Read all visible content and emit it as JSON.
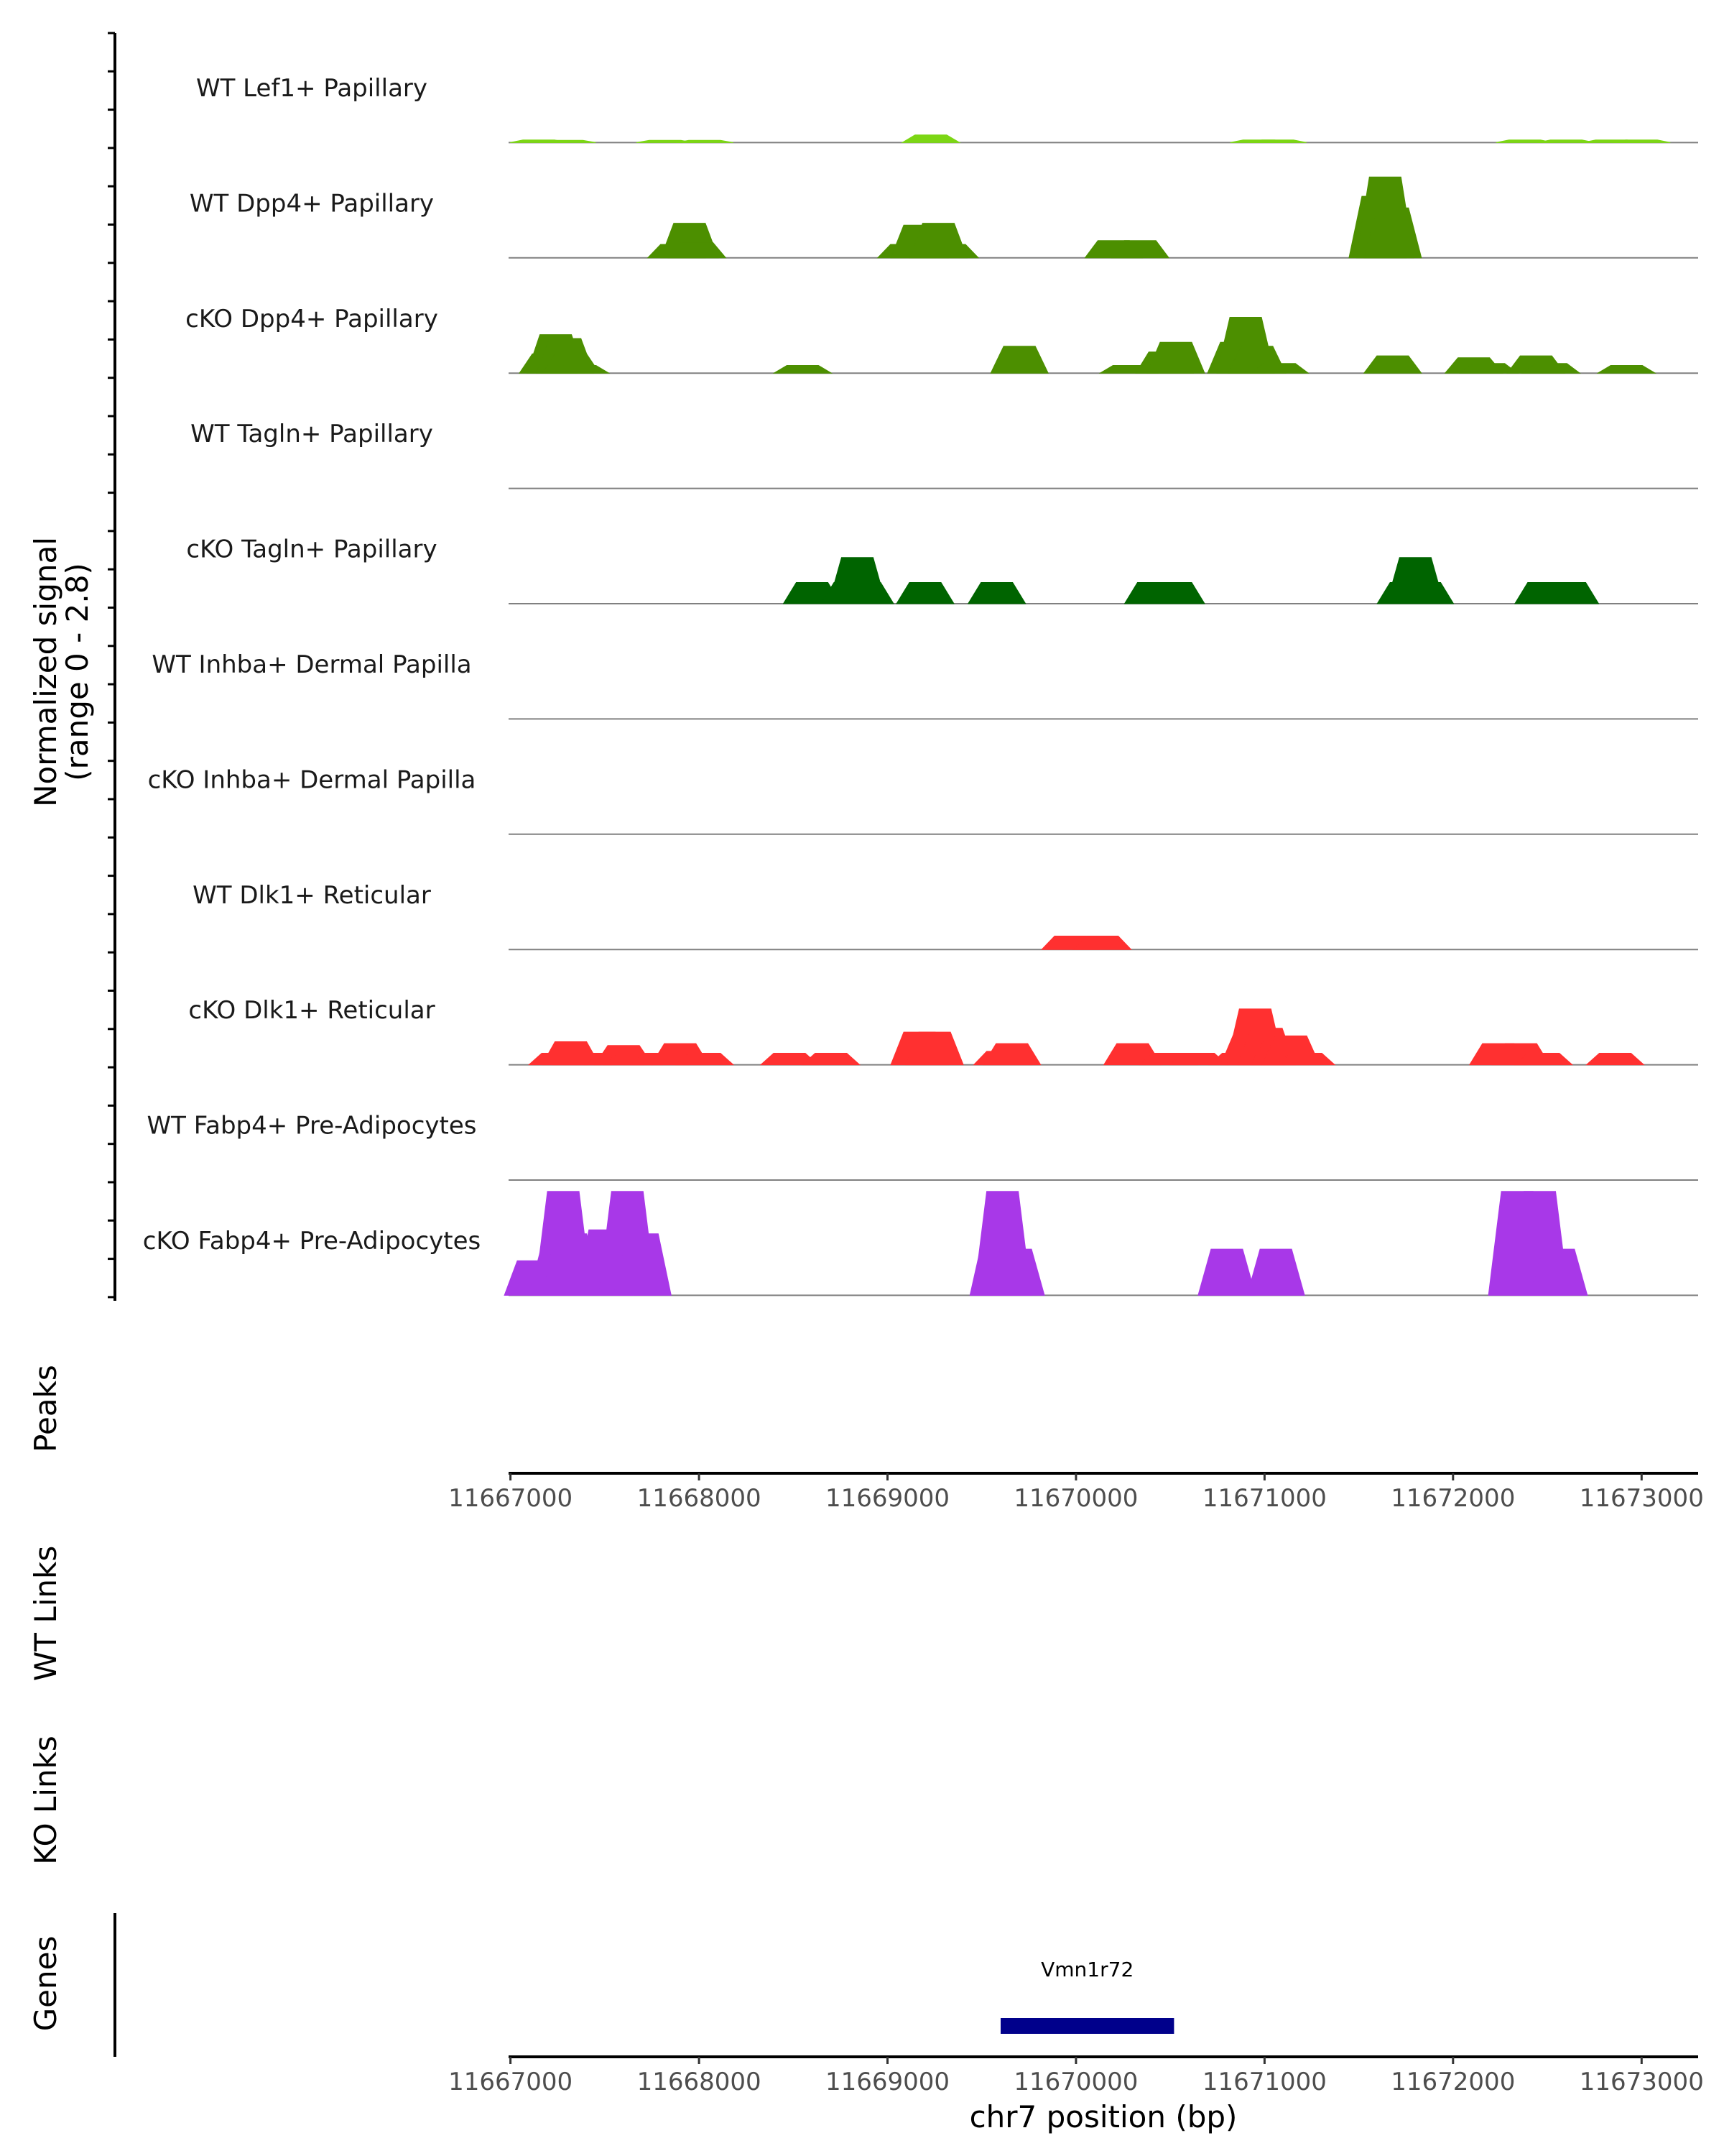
{
  "chart_data": {
    "type": "area",
    "y_axis_title": "Normalized signal",
    "y_axis_subtitle": "(range 0 - 2.8)",
    "y_range": [
      0,
      2.8
    ],
    "x_range": [
      11666990,
      11673300
    ],
    "x_ticks": [
      "11667000",
      "11668000",
      "11669000",
      "11670000",
      "11671000",
      "11672000",
      "11673000"
    ],
    "x_tick_values": [
      11667000,
      11668000,
      11669000,
      11670000,
      11671000,
      11672000,
      11673000
    ],
    "x_axis_title": "chr7 position (bp)",
    "tracks": [
      {
        "name": "WT Lef1+ Papillary",
        "color": "#7CD614",
        "peaks": [
          [
            11667150,
            0.07
          ],
          [
            11667300,
            0.06
          ],
          [
            11667820,
            0.06
          ],
          [
            11668030,
            0.06
          ],
          [
            11669230,
            0.2
          ],
          [
            11670970,
            0.07
          ],
          [
            11671070,
            0.07
          ],
          [
            11672380,
            0.07
          ],
          [
            11672600,
            0.07
          ],
          [
            11672840,
            0.07
          ],
          [
            11673000,
            0.07
          ]
        ]
      },
      {
        "name": "WT Dpp4+ Papillary",
        "color": "#4C8F00",
        "peaks": [
          [
            11667880,
            0.35
          ],
          [
            11667950,
            0.9
          ],
          [
            11667990,
            0.4
          ],
          [
            11669100,
            0.35
          ],
          [
            11669170,
            0.85
          ],
          [
            11669270,
            0.9
          ],
          [
            11669330,
            0.35
          ],
          [
            11670200,
            0.45
          ],
          [
            11670340,
            0.45
          ],
          [
            11671600,
            1.6
          ],
          [
            11671640,
            2.1
          ],
          [
            11671680,
            1.3
          ]
        ]
      },
      {
        "name": "cKO Dpp4+ Papillary",
        "color": "#4C8F00",
        "peaks": [
          [
            11667200,
            0.5
          ],
          [
            11667240,
            1.0
          ],
          [
            11667290,
            0.9
          ],
          [
            11667320,
            0.5
          ],
          [
            11667370,
            0.2
          ],
          [
            11668550,
            0.2
          ],
          [
            11669700,
            0.7
          ],
          [
            11670280,
            0.2
          ],
          [
            11670470,
            0.55
          ],
          [
            11670530,
            0.8
          ],
          [
            11670850,
            0.8
          ],
          [
            11670900,
            1.45
          ],
          [
            11670960,
            0.7
          ],
          [
            11671080,
            0.25
          ],
          [
            11671680,
            0.45
          ],
          [
            11672110,
            0.4
          ],
          [
            11672190,
            0.25
          ],
          [
            11672440,
            0.45
          ],
          [
            11672520,
            0.25
          ],
          [
            11672920,
            0.2
          ]
        ]
      },
      {
        "name": "WT Tagln+ Papillary",
        "color": "#006400",
        "peaks": []
      },
      {
        "name": "cKO Tagln+ Papillary",
        "color": "#006400",
        "peaks": [
          [
            11668600,
            0.55
          ],
          [
            11668800,
            0.55
          ],
          [
            11668840,
            1.2
          ],
          [
            11668880,
            0.55
          ],
          [
            11669200,
            0.55
          ],
          [
            11669580,
            0.55
          ],
          [
            11670410,
            0.55
          ],
          [
            11670530,
            0.55
          ],
          [
            11671750,
            0.55
          ],
          [
            11671800,
            1.2
          ],
          [
            11671850,
            0.55
          ],
          [
            11672480,
            0.55
          ],
          [
            11672620,
            0.55
          ]
        ]
      },
      {
        "name": "WT Inhba+ Dermal Papilla",
        "color": "#4C8F00",
        "peaks": []
      },
      {
        "name": "cKO Inhba+ Dermal Papilla",
        "color": "#4C8F00",
        "peaks": []
      },
      {
        "name": "WT Dlk1+ Reticular",
        "color": "#FF3030",
        "peaks": [
          [
            11669970,
            0.35
          ],
          [
            11670140,
            0.35
          ]
        ]
      },
      {
        "name": "cKO Dlk1+ Reticular",
        "color": "#FF3030",
        "peaks": [
          [
            11667250,
            0.3
          ],
          [
            11667320,
            0.6
          ],
          [
            11667380,
            0.3
          ],
          [
            11667550,
            0.3
          ],
          [
            11667600,
            0.5
          ],
          [
            11667650,
            0.3
          ],
          [
            11667790,
            0.3
          ],
          [
            11667900,
            0.55
          ],
          [
            11668030,
            0.3
          ],
          [
            11668480,
            0.3
          ],
          [
            11668700,
            0.3
          ],
          [
            11669170,
            0.85
          ],
          [
            11669250,
            0.85
          ],
          [
            11669610,
            0.35
          ],
          [
            11669660,
            0.55
          ],
          [
            11670300,
            0.55
          ],
          [
            11670490,
            0.3
          ],
          [
            11670650,
            0.3
          ],
          [
            11670860,
            0.3
          ],
          [
            11670920,
            0.8
          ],
          [
            11670950,
            1.45
          ],
          [
            11671010,
            0.95
          ],
          [
            11671080,
            0.65
          ],
          [
            11671140,
            0.75
          ],
          [
            11671220,
            0.3
          ],
          [
            11672240,
            0.55
          ],
          [
            11672360,
            0.55
          ],
          [
            11672480,
            0.3
          ],
          [
            11672860,
            0.3
          ]
        ]
      },
      {
        "name": "WT Fabp4+ Pre-Adipocytes",
        "color": "#A838E8",
        "peaks": []
      },
      {
        "name": "cKO Fabp4+ Pre-Adipocytes",
        "color": "#A838E8",
        "peaks": [
          [
            11667120,
            0.9
          ],
          [
            11667250,
            1.3
          ],
          [
            11667280,
            2.7
          ],
          [
            11667320,
            1.6
          ],
          [
            11667500,
            1.7
          ],
          [
            11667620,
            2.7
          ],
          [
            11667700,
            1.6
          ],
          [
            11669590,
            1.5
          ],
          [
            11669610,
            2.7
          ],
          [
            11669680,
            1.2
          ],
          [
            11670800,
            1.2
          ],
          [
            11671060,
            1.2
          ],
          [
            11672340,
            2.7
          ],
          [
            11672460,
            2.7
          ],
          [
            11672560,
            1.2
          ]
        ]
      }
    ],
    "panels": [
      "Peaks",
      "WT Links",
      "KO Links",
      "Genes"
    ],
    "genes": [
      {
        "name": "Vmn1r72",
        "start": 11669600,
        "end": 11670520,
        "color": "#00008B"
      }
    ]
  }
}
